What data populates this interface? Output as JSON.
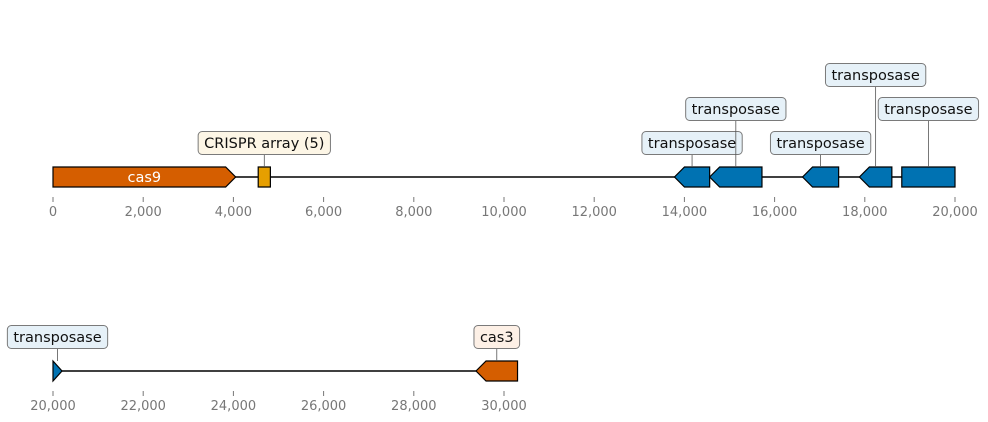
{
  "chart_data": {
    "type": "genome-map",
    "colors": {
      "cas": "#d55e00",
      "crispr": "#e69f00",
      "transposase": "#0072b2",
      "backbone": "#000000",
      "axis_text": "#777777",
      "label_fill_cas": "#fdf0e6",
      "label_fill_crispr": "#fdf6e6",
      "label_fill_transposase": "#e6f1f8",
      "label_edge": "#7a7a7a"
    },
    "tracks": [
      {
        "id": "track-1",
        "start": 0,
        "end": 20000,
        "ticks": [
          0,
          2000,
          4000,
          6000,
          8000,
          10000,
          12000,
          14000,
          16000,
          18000,
          20000
        ],
        "tick_labels": [
          "0",
          "2,000",
          "4,000",
          "6,000",
          "8,000",
          "10,000",
          "12,000",
          "14,000",
          "16,000",
          "18,000",
          "20,000"
        ],
        "features": [
          {
            "name": "cas9",
            "start": 0,
            "end": 4050,
            "strand": 1,
            "kind": "cas",
            "label": "cas9",
            "label_mode": "inline"
          },
          {
            "name": "crispr-array",
            "start": 4550,
            "end": 4820,
            "strand": 0,
            "kind": "crispr",
            "label": "CRISPR array (5)",
            "label_mode": "box",
            "label_level": 1
          },
          {
            "name": "transposase-1",
            "start": 13780,
            "end": 14560,
            "strand": -1,
            "kind": "transposase",
            "label": "transposase",
            "label_mode": "box",
            "label_level": 1
          },
          {
            "name": "transposase-2",
            "start": 14560,
            "end": 15720,
            "strand": -1,
            "kind": "transposase",
            "label": "transposase",
            "label_mode": "box",
            "label_level": 2
          },
          {
            "name": "transposase-3",
            "start": 16620,
            "end": 17420,
            "strand": -1,
            "kind": "transposase",
            "label": "transposase",
            "label_mode": "box",
            "label_level": 1
          },
          {
            "name": "transposase-4",
            "start": 17880,
            "end": 18600,
            "strand": -1,
            "kind": "transposase",
            "label": "transposase",
            "label_mode": "box",
            "label_level": 3
          },
          {
            "name": "transposase-5",
            "start": 18820,
            "end": 20000,
            "strand": 0,
            "kind": "transposase",
            "label": "transposase",
            "label_mode": "box",
            "label_level": 2
          }
        ]
      },
      {
        "id": "track-2",
        "start": 20000,
        "end": 30300,
        "ticks": [
          20000,
          22000,
          24000,
          26000,
          28000,
          30000
        ],
        "tick_labels": [
          "20,000",
          "22,000",
          "24,000",
          "26,000",
          "28,000",
          "30,000"
        ],
        "features": [
          {
            "name": "transposase-6",
            "start": 20000,
            "end": 20200,
            "strand": 1,
            "kind": "transposase",
            "label": "transposase",
            "label_mode": "box",
            "label_level": 1
          },
          {
            "name": "cas3",
            "start": 29380,
            "end": 30300,
            "strand": -1,
            "kind": "cas",
            "label": "cas3",
            "label_mode": "box",
            "label_level": 1
          }
        ]
      }
    ]
  }
}
